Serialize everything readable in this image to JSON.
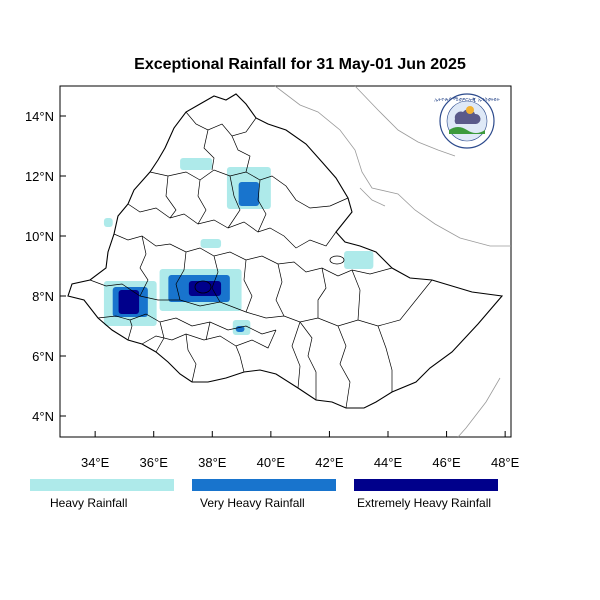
{
  "title": "Exceptional Rainfall for 31 May-01 Jun 2025",
  "x_axis": {
    "ticks": [
      34,
      36,
      38,
      40,
      42,
      44,
      46,
      48
    ],
    "labels": [
      "34°E",
      "36°E",
      "38°E",
      "40°E",
      "42°E",
      "44°E",
      "46°E",
      "48°E"
    ]
  },
  "y_axis": {
    "ticks": [
      4,
      6,
      8,
      10,
      12,
      14
    ],
    "labels": [
      "4°N",
      "6°N",
      "8°N",
      "10°N",
      "12°N",
      "14°N"
    ]
  },
  "extent": {
    "lon_min": 32.8,
    "lon_max": 48.2,
    "lat_min": 3.3,
    "lat_max": 15.0
  },
  "legend": [
    {
      "label": "Heavy Rainfall",
      "color": "#aeeaea"
    },
    {
      "label": "Very Heavy Rainfall",
      "color": "#1874cd"
    },
    {
      "label": "Extremely Heavy Rainfall",
      "color": "#00008b"
    }
  ],
  "logo_text": "ኢትዮጵያ ሚቲዎሮሎጂ ኢንስቲትዩት",
  "chart_data": {
    "type": "heatmap",
    "title": "Exceptional Rainfall for 31 May-01 Jun 2025",
    "xlabel": "",
    "ylabel": "",
    "xlim": [
      32.8,
      48.2
    ],
    "ylim": [
      3.3,
      15.0
    ],
    "categories": [
      "Heavy Rainfall",
      "Very Heavy Rainfall",
      "Extremely Heavy Rainfall"
    ],
    "regions": [
      {
        "name": "",
        "level": 0,
        "lon": [
          34.3,
          36.1
        ],
        "lat": [
          7.0,
          8.5
        ]
      },
      {
        "name": "",
        "level": 1,
        "lon": [
          34.6,
          35.8
        ],
        "lat": [
          7.3,
          8.3
        ]
      },
      {
        "name": "",
        "level": 2,
        "lon": [
          34.8,
          35.5
        ],
        "lat": [
          7.4,
          8.2
        ]
      },
      {
        "name": "",
        "level": 0,
        "lon": [
          36.2,
          39.0
        ],
        "lat": [
          7.5,
          8.9
        ]
      },
      {
        "name": "",
        "level": 1,
        "lon": [
          36.5,
          38.6
        ],
        "lat": [
          7.8,
          8.7
        ]
      },
      {
        "name": "",
        "level": 2,
        "lon": [
          37.2,
          38.3
        ],
        "lat": [
          8.0,
          8.5
        ]
      },
      {
        "name": "",
        "level": 0,
        "lon": [
          38.5,
          40.0
        ],
        "lat": [
          10.9,
          12.3
        ]
      },
      {
        "name": "",
        "level": 1,
        "lon": [
          38.9,
          39.6
        ],
        "lat": [
          11.0,
          11.8
        ]
      },
      {
        "name": "",
        "level": 0,
        "lon": [
          38.7,
          39.3
        ],
        "lat": [
          6.7,
          7.2
        ]
      },
      {
        "name": "",
        "level": 1,
        "lon": [
          38.8,
          39.1
        ],
        "lat": [
          6.8,
          7.0
        ]
      },
      {
        "name": "",
        "level": 0,
        "lon": [
          42.5,
          43.5
        ],
        "lat": [
          8.9,
          9.5
        ]
      },
      {
        "name": "",
        "level": 0,
        "lon": [
          36.9,
          38.0
        ],
        "lat": [
          12.2,
          12.6
        ]
      },
      {
        "name": "",
        "level": 0,
        "lon": [
          37.6,
          38.3
        ],
        "lat": [
          9.6,
          9.9
        ]
      },
      {
        "name": "",
        "level": 0,
        "lon": [
          34.3,
          34.6
        ],
        "lat": [
          10.3,
          10.6
        ]
      }
    ]
  }
}
